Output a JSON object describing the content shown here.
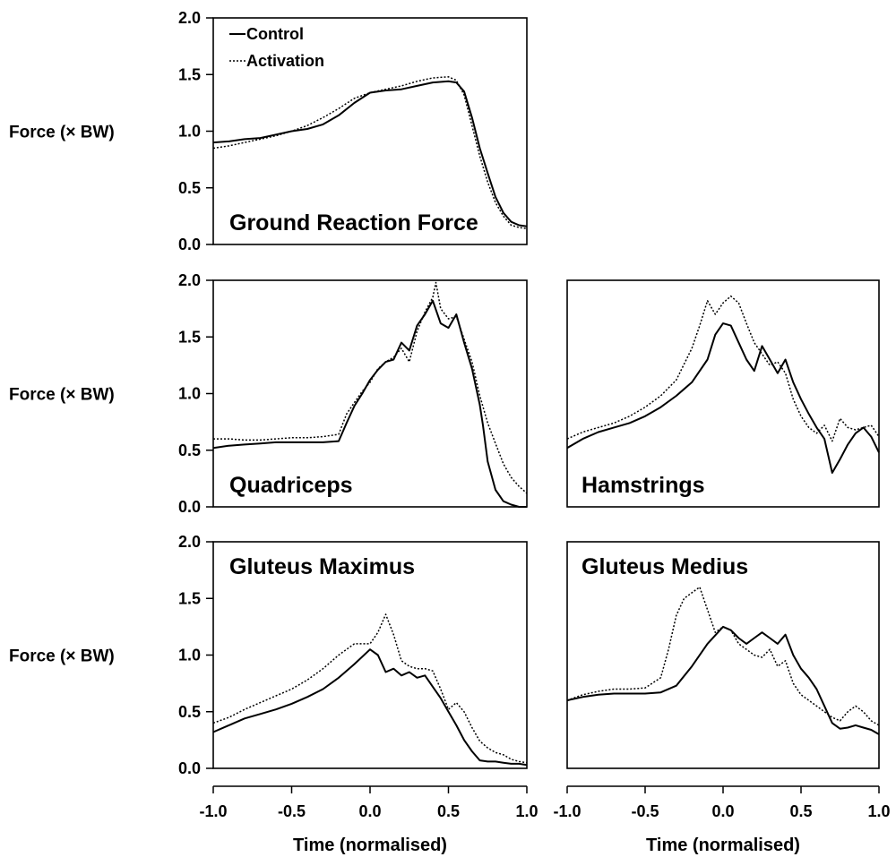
{
  "chart_data": [
    {
      "type": "line",
      "title": "Ground Reaction Force",
      "ylabel": "Force (× BW)",
      "xlabel": "",
      "xlim": [
        -1.0,
        1.0
      ],
      "ylim": [
        0.0,
        2.0
      ],
      "yticks": [
        "0.0",
        "0.5",
        "1.0",
        "1.5",
        "2.0"
      ],
      "xticks": [],
      "legend": {
        "position": "top-left",
        "entries": [
          "Control",
          "Activation"
        ]
      },
      "series": [
        {
          "name": "Control",
          "style": "solid",
          "x": [
            -1.0,
            -0.9,
            -0.8,
            -0.7,
            -0.6,
            -0.5,
            -0.4,
            -0.3,
            -0.2,
            -0.1,
            0.0,
            0.1,
            0.2,
            0.3,
            0.4,
            0.5,
            0.55,
            0.6,
            0.65,
            0.7,
            0.75,
            0.8,
            0.85,
            0.9,
            0.95,
            1.0
          ],
          "y": [
            0.9,
            0.91,
            0.93,
            0.94,
            0.97,
            1.0,
            1.02,
            1.06,
            1.14,
            1.25,
            1.34,
            1.36,
            1.37,
            1.4,
            1.43,
            1.44,
            1.43,
            1.35,
            1.12,
            0.85,
            0.63,
            0.42,
            0.28,
            0.2,
            0.17,
            0.16
          ]
        },
        {
          "name": "Activation",
          "style": "dotted",
          "x": [
            -1.0,
            -0.9,
            -0.8,
            -0.7,
            -0.6,
            -0.5,
            -0.4,
            -0.3,
            -0.2,
            -0.1,
            0.0,
            0.1,
            0.2,
            0.3,
            0.4,
            0.5,
            0.55,
            0.6,
            0.65,
            0.7,
            0.75,
            0.8,
            0.85,
            0.9,
            0.95,
            1.0
          ],
          "y": [
            0.85,
            0.87,
            0.9,
            0.93,
            0.96,
            1.0,
            1.05,
            1.12,
            1.2,
            1.29,
            1.34,
            1.37,
            1.4,
            1.44,
            1.47,
            1.48,
            1.45,
            1.32,
            1.05,
            0.78,
            0.55,
            0.37,
            0.25,
            0.17,
            0.15,
            0.14
          ]
        }
      ]
    },
    {
      "type": "line",
      "title": "Quadriceps",
      "ylabel": "Force (× BW)",
      "xlabel": "",
      "xlim": [
        -1.0,
        1.0
      ],
      "ylim": [
        0.0,
        2.0
      ],
      "yticks": [
        "0.0",
        "0.5",
        "1.0",
        "1.5",
        "2.0"
      ],
      "xticks": [],
      "series": [
        {
          "name": "Control",
          "style": "solid",
          "x": [
            -1.0,
            -0.9,
            -0.8,
            -0.7,
            -0.6,
            -0.5,
            -0.4,
            -0.3,
            -0.2,
            -0.15,
            -0.1,
            -0.05,
            0.0,
            0.05,
            0.1,
            0.15,
            0.2,
            0.25,
            0.3,
            0.35,
            0.4,
            0.45,
            0.5,
            0.55,
            0.6,
            0.65,
            0.7,
            0.72,
            0.75,
            0.8,
            0.85,
            0.9,
            0.95,
            1.0
          ],
          "y": [
            0.52,
            0.54,
            0.55,
            0.56,
            0.57,
            0.57,
            0.57,
            0.57,
            0.58,
            0.74,
            0.89,
            1.0,
            1.12,
            1.21,
            1.28,
            1.3,
            1.45,
            1.38,
            1.6,
            1.7,
            1.82,
            1.62,
            1.58,
            1.7,
            1.45,
            1.22,
            0.9,
            0.72,
            0.4,
            0.15,
            0.05,
            0.02,
            0.0,
            0.0
          ]
        },
        {
          "name": "Activation",
          "style": "dotted",
          "x": [
            -1.0,
            -0.9,
            -0.8,
            -0.7,
            -0.6,
            -0.5,
            -0.4,
            -0.3,
            -0.2,
            -0.15,
            -0.1,
            -0.05,
            0.0,
            0.05,
            0.1,
            0.15,
            0.2,
            0.25,
            0.3,
            0.35,
            0.4,
            0.42,
            0.45,
            0.5,
            0.55,
            0.6,
            0.65,
            0.7,
            0.75,
            0.8,
            0.85,
            0.9,
            0.95,
            1.0
          ],
          "y": [
            0.6,
            0.6,
            0.59,
            0.59,
            0.6,
            0.61,
            0.61,
            0.62,
            0.64,
            0.82,
            0.92,
            1.02,
            1.1,
            1.22,
            1.28,
            1.32,
            1.4,
            1.28,
            1.55,
            1.72,
            1.85,
            1.98,
            1.75,
            1.66,
            1.68,
            1.48,
            1.28,
            0.98,
            0.74,
            0.56,
            0.38,
            0.26,
            0.18,
            0.12
          ]
        }
      ]
    },
    {
      "type": "line",
      "title": "Hamstrings",
      "ylabel": "",
      "xlabel": "",
      "xlim": [
        -1.0,
        1.0
      ],
      "ylim": [
        0.0,
        2.0
      ],
      "yticks": [],
      "xticks": [],
      "series": [
        {
          "name": "Control",
          "style": "solid",
          "x": [
            -1.0,
            -0.9,
            -0.8,
            -0.7,
            -0.6,
            -0.5,
            -0.4,
            -0.3,
            -0.2,
            -0.1,
            -0.05,
            0.0,
            0.05,
            0.1,
            0.15,
            0.2,
            0.25,
            0.3,
            0.35,
            0.4,
            0.45,
            0.5,
            0.55,
            0.6,
            0.65,
            0.7,
            0.75,
            0.8,
            0.85,
            0.9,
            0.95,
            1.0
          ],
          "y": [
            0.52,
            0.6,
            0.66,
            0.7,
            0.74,
            0.8,
            0.88,
            0.98,
            1.1,
            1.3,
            1.52,
            1.62,
            1.6,
            1.45,
            1.3,
            1.2,
            1.42,
            1.3,
            1.18,
            1.3,
            1.1,
            0.95,
            0.82,
            0.7,
            0.6,
            0.3,
            0.42,
            0.55,
            0.65,
            0.7,
            0.62,
            0.48
          ]
        },
        {
          "name": "Activation",
          "style": "dotted",
          "x": [
            -1.0,
            -0.9,
            -0.8,
            -0.7,
            -0.6,
            -0.5,
            -0.4,
            -0.3,
            -0.2,
            -0.15,
            -0.1,
            -0.05,
            0.0,
            0.05,
            0.1,
            0.15,
            0.2,
            0.25,
            0.3,
            0.35,
            0.4,
            0.45,
            0.5,
            0.55,
            0.6,
            0.65,
            0.7,
            0.75,
            0.8,
            0.85,
            0.9,
            0.95,
            1.0
          ],
          "y": [
            0.6,
            0.66,
            0.7,
            0.74,
            0.8,
            0.88,
            0.98,
            1.12,
            1.4,
            1.6,
            1.82,
            1.7,
            1.8,
            1.86,
            1.8,
            1.62,
            1.45,
            1.35,
            1.25,
            1.28,
            1.18,
            0.95,
            0.8,
            0.7,
            0.65,
            0.72,
            0.58,
            0.78,
            0.7,
            0.68,
            0.7,
            0.72,
            0.62
          ]
        }
      ]
    },
    {
      "type": "line",
      "title": "Gluteus Maximus",
      "ylabel": "Force (× BW)",
      "xlabel": "Time (normalised)",
      "xlim": [
        -1.0,
        1.0
      ],
      "ylim": [
        0.0,
        2.0
      ],
      "yticks": [
        "0.0",
        "0.5",
        "1.0",
        "1.5",
        "2.0"
      ],
      "xticks": [
        "-1.0",
        "-0.5",
        "0.0",
        "0.5",
        "1.0"
      ],
      "series": [
        {
          "name": "Control",
          "style": "solid",
          "x": [
            -1.0,
            -0.9,
            -0.8,
            -0.7,
            -0.6,
            -0.5,
            -0.4,
            -0.3,
            -0.2,
            -0.1,
            0.0,
            0.05,
            0.1,
            0.15,
            0.2,
            0.25,
            0.3,
            0.35,
            0.4,
            0.45,
            0.5,
            0.55,
            0.6,
            0.65,
            0.7,
            0.75,
            0.8,
            0.85,
            0.9,
            0.95,
            1.0
          ],
          "y": [
            0.32,
            0.38,
            0.44,
            0.48,
            0.52,
            0.57,
            0.63,
            0.7,
            0.8,
            0.92,
            1.05,
            1.0,
            0.85,
            0.88,
            0.82,
            0.85,
            0.8,
            0.82,
            0.72,
            0.62,
            0.5,
            0.38,
            0.25,
            0.15,
            0.07,
            0.06,
            0.06,
            0.05,
            0.04,
            0.04,
            0.03
          ]
        },
        {
          "name": "Activation",
          "style": "dotted",
          "x": [
            -1.0,
            -0.9,
            -0.8,
            -0.7,
            -0.6,
            -0.5,
            -0.4,
            -0.3,
            -0.2,
            -0.1,
            0.0,
            0.05,
            0.1,
            0.15,
            0.2,
            0.25,
            0.3,
            0.35,
            0.4,
            0.45,
            0.5,
            0.55,
            0.6,
            0.65,
            0.7,
            0.75,
            0.8,
            0.85,
            0.9,
            0.95,
            1.0
          ],
          "y": [
            0.4,
            0.45,
            0.52,
            0.58,
            0.64,
            0.7,
            0.78,
            0.88,
            1.0,
            1.1,
            1.1,
            1.2,
            1.36,
            1.18,
            0.95,
            0.9,
            0.88,
            0.88,
            0.86,
            0.7,
            0.52,
            0.58,
            0.5,
            0.36,
            0.24,
            0.18,
            0.14,
            0.12,
            0.08,
            0.06,
            0.05
          ]
        }
      ]
    },
    {
      "type": "line",
      "title": "Gluteus Medius",
      "ylabel": "",
      "xlabel": "Time (normalised)",
      "xlim": [
        -1.0,
        1.0
      ],
      "ylim": [
        0.0,
        2.0
      ],
      "yticks": [],
      "xticks": [
        "-1.0",
        "-0.5",
        "0.0",
        "0.5",
        "1.0"
      ],
      "series": [
        {
          "name": "Control",
          "style": "solid",
          "x": [
            -1.0,
            -0.9,
            -0.8,
            -0.7,
            -0.6,
            -0.5,
            -0.4,
            -0.3,
            -0.2,
            -0.1,
            0.0,
            0.05,
            0.1,
            0.15,
            0.2,
            0.25,
            0.3,
            0.35,
            0.4,
            0.45,
            0.5,
            0.55,
            0.6,
            0.65,
            0.7,
            0.75,
            0.8,
            0.85,
            0.9,
            0.95,
            1.0
          ],
          "y": [
            0.6,
            0.63,
            0.65,
            0.66,
            0.66,
            0.66,
            0.67,
            0.73,
            0.9,
            1.1,
            1.25,
            1.22,
            1.15,
            1.1,
            1.15,
            1.2,
            1.15,
            1.1,
            1.18,
            1.0,
            0.88,
            0.8,
            0.7,
            0.55,
            0.4,
            0.35,
            0.36,
            0.38,
            0.36,
            0.34,
            0.3
          ]
        },
        {
          "name": "Activation",
          "style": "dotted",
          "x": [
            -1.0,
            -0.9,
            -0.8,
            -0.7,
            -0.6,
            -0.5,
            -0.4,
            -0.35,
            -0.3,
            -0.25,
            -0.2,
            -0.15,
            -0.1,
            -0.05,
            0.0,
            0.05,
            0.1,
            0.15,
            0.2,
            0.25,
            0.3,
            0.35,
            0.4,
            0.45,
            0.5,
            0.55,
            0.6,
            0.65,
            0.7,
            0.75,
            0.8,
            0.85,
            0.9,
            0.95,
            1.0
          ],
          "y": [
            0.6,
            0.65,
            0.68,
            0.7,
            0.7,
            0.71,
            0.8,
            1.05,
            1.35,
            1.5,
            1.55,
            1.6,
            1.4,
            1.2,
            1.25,
            1.22,
            1.1,
            1.05,
            1.0,
            0.98,
            1.05,
            0.9,
            0.95,
            0.75,
            0.65,
            0.6,
            0.55,
            0.5,
            0.45,
            0.42,
            0.5,
            0.55,
            0.5,
            0.42,
            0.38
          ]
        }
      ]
    }
  ]
}
